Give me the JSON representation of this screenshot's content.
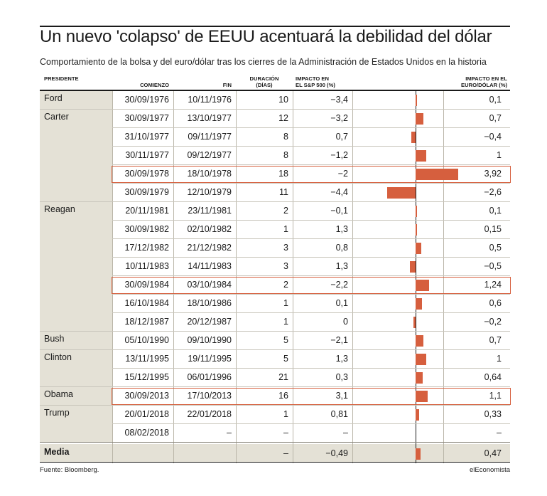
{
  "title": "Un nuevo 'colapso' de EEUU acentuará la debilidad del dólar",
  "subtitle": "Comportamiento de la bolsa y del euro/dólar tras los cierres de la Administración de Estados Unidos en la historia",
  "headers": {
    "presidente": "PRESIDENTE",
    "comienzo": "COMIENZO",
    "fin": "FIN",
    "duracion": "DURACIÓN\n(DÍAS)",
    "sp500": "IMPACTO EN\nEL S&P 500 (%)",
    "euro": "IMPACTO EN EL\nEURO/DÓLAR (%)"
  },
  "colors": {
    "bar": "#d65f3e",
    "highlight": "#d65f3e",
    "shade": "#e4e1d6"
  },
  "chart_data": {
    "type": "table",
    "columns": [
      "Presidente",
      "Comienzo",
      "Fin",
      "Duración (días)",
      "Impacto en el S&P 500 (%)",
      "Impacto en el euro/dólar (%)"
    ],
    "bar_column": "Impacto en el euro/dólar (%)",
    "bar_range": [
      -3.0,
      5.0
    ],
    "rows": [
      {
        "presidente": "Ford",
        "comienzo": "30/09/1976",
        "fin": "10/11/1976",
        "duracion": "10",
        "sp500": "−3,4",
        "euro": "0,1",
        "euro_value": 0.1,
        "highlight": false
      },
      {
        "presidente": "Carter",
        "comienzo": "30/09/1977",
        "fin": "13/10/1977",
        "duracion": "12",
        "sp500": "−3,2",
        "euro": "0,7",
        "euro_value": 0.7,
        "highlight": false
      },
      {
        "presidente": "",
        "comienzo": "31/10/1977",
        "fin": "09/11/1977",
        "duracion": "8",
        "sp500": "0,7",
        "euro": "−0,4",
        "euro_value": -0.4,
        "highlight": false
      },
      {
        "presidente": "",
        "comienzo": "30/11/1977",
        "fin": "09/12/1977",
        "duracion": "8",
        "sp500": "−1,2",
        "euro": "1",
        "euro_value": 1.0,
        "highlight": false
      },
      {
        "presidente": "",
        "comienzo": "30/09/1978",
        "fin": "18/10/1978",
        "duracion": "18",
        "sp500": "−2",
        "euro": "3,92",
        "euro_value": 3.92,
        "highlight": true
      },
      {
        "presidente": "",
        "comienzo": "30/09/1979",
        "fin": "12/10/1979",
        "duracion": "11",
        "sp500": "−4,4",
        "euro": "−2,6",
        "euro_value": -2.6,
        "highlight": false
      },
      {
        "presidente": "Reagan",
        "comienzo": "20/11/1981",
        "fin": "23/11/1981",
        "duracion": "2",
        "sp500": "−0,1",
        "euro": "0,1",
        "euro_value": 0.1,
        "highlight": false
      },
      {
        "presidente": "",
        "comienzo": "30/09/1982",
        "fin": "02/10/1982",
        "duracion": "1",
        "sp500": "1,3",
        "euro": "0,15",
        "euro_value": 0.15,
        "highlight": false
      },
      {
        "presidente": "",
        "comienzo": "17/12/1982",
        "fin": "21/12/1982",
        "duracion": "3",
        "sp500": "0,8",
        "euro": "0,5",
        "euro_value": 0.5,
        "highlight": false
      },
      {
        "presidente": "",
        "comienzo": "10/11/1983",
        "fin": "14/11/1983",
        "duracion": "3",
        "sp500": "1,3",
        "euro": "−0,5",
        "euro_value": -0.5,
        "highlight": false
      },
      {
        "presidente": "",
        "comienzo": "30/09/1984",
        "fin": "03/10/1984",
        "duracion": "2",
        "sp500": "−2,2",
        "euro": "1,24",
        "euro_value": 1.24,
        "highlight": true
      },
      {
        "presidente": "",
        "comienzo": "16/10/1984",
        "fin": "18/10/1986",
        "duracion": "1",
        "sp500": "0,1",
        "euro": "0,6",
        "euro_value": 0.6,
        "highlight": false
      },
      {
        "presidente": "",
        "comienzo": "18/12/1987",
        "fin": "20/12/1987",
        "duracion": "1",
        "sp500": "0",
        "euro": "−0,2",
        "euro_value": -0.2,
        "highlight": false
      },
      {
        "presidente": "Bush",
        "comienzo": "05/10/1990",
        "fin": "09/10/1990",
        "duracion": "5",
        "sp500": "−2,1",
        "euro": "0,7",
        "euro_value": 0.7,
        "highlight": false
      },
      {
        "presidente": "Clinton",
        "comienzo": "13/11/1995",
        "fin": "19/11/1995",
        "duracion": "5",
        "sp500": "1,3",
        "euro": "1",
        "euro_value": 1.0,
        "highlight": false
      },
      {
        "presidente": "",
        "comienzo": "15/12/1995",
        "fin": "06/01/1996",
        "duracion": "21",
        "sp500": "0,3",
        "euro": "0,64",
        "euro_value": 0.64,
        "highlight": false
      },
      {
        "presidente": "Obama",
        "comienzo": "30/09/2013",
        "fin": "17/10/2013",
        "duracion": "16",
        "sp500": "3,1",
        "euro": "1,1",
        "euro_value": 1.1,
        "highlight": true
      },
      {
        "presidente": "Trump",
        "comienzo": "20/01/2018",
        "fin": "22/01/2018",
        "duracion": "1",
        "sp500": "0,81",
        "euro": "0,33",
        "euro_value": 0.33,
        "highlight": false
      },
      {
        "presidente": "",
        "comienzo": "08/02/2018",
        "fin": "–",
        "duracion": "–",
        "sp500": "–",
        "euro": "–",
        "euro_value": null,
        "highlight": false
      }
    ],
    "media": {
      "presidente": "Media",
      "comienzo": "",
      "fin": "",
      "duracion": "–",
      "sp500": "−0,49",
      "euro": "0,47",
      "euro_value": 0.47
    }
  },
  "footer": {
    "source": "Fuente: Bloomberg.",
    "brand": "elEconomista"
  }
}
